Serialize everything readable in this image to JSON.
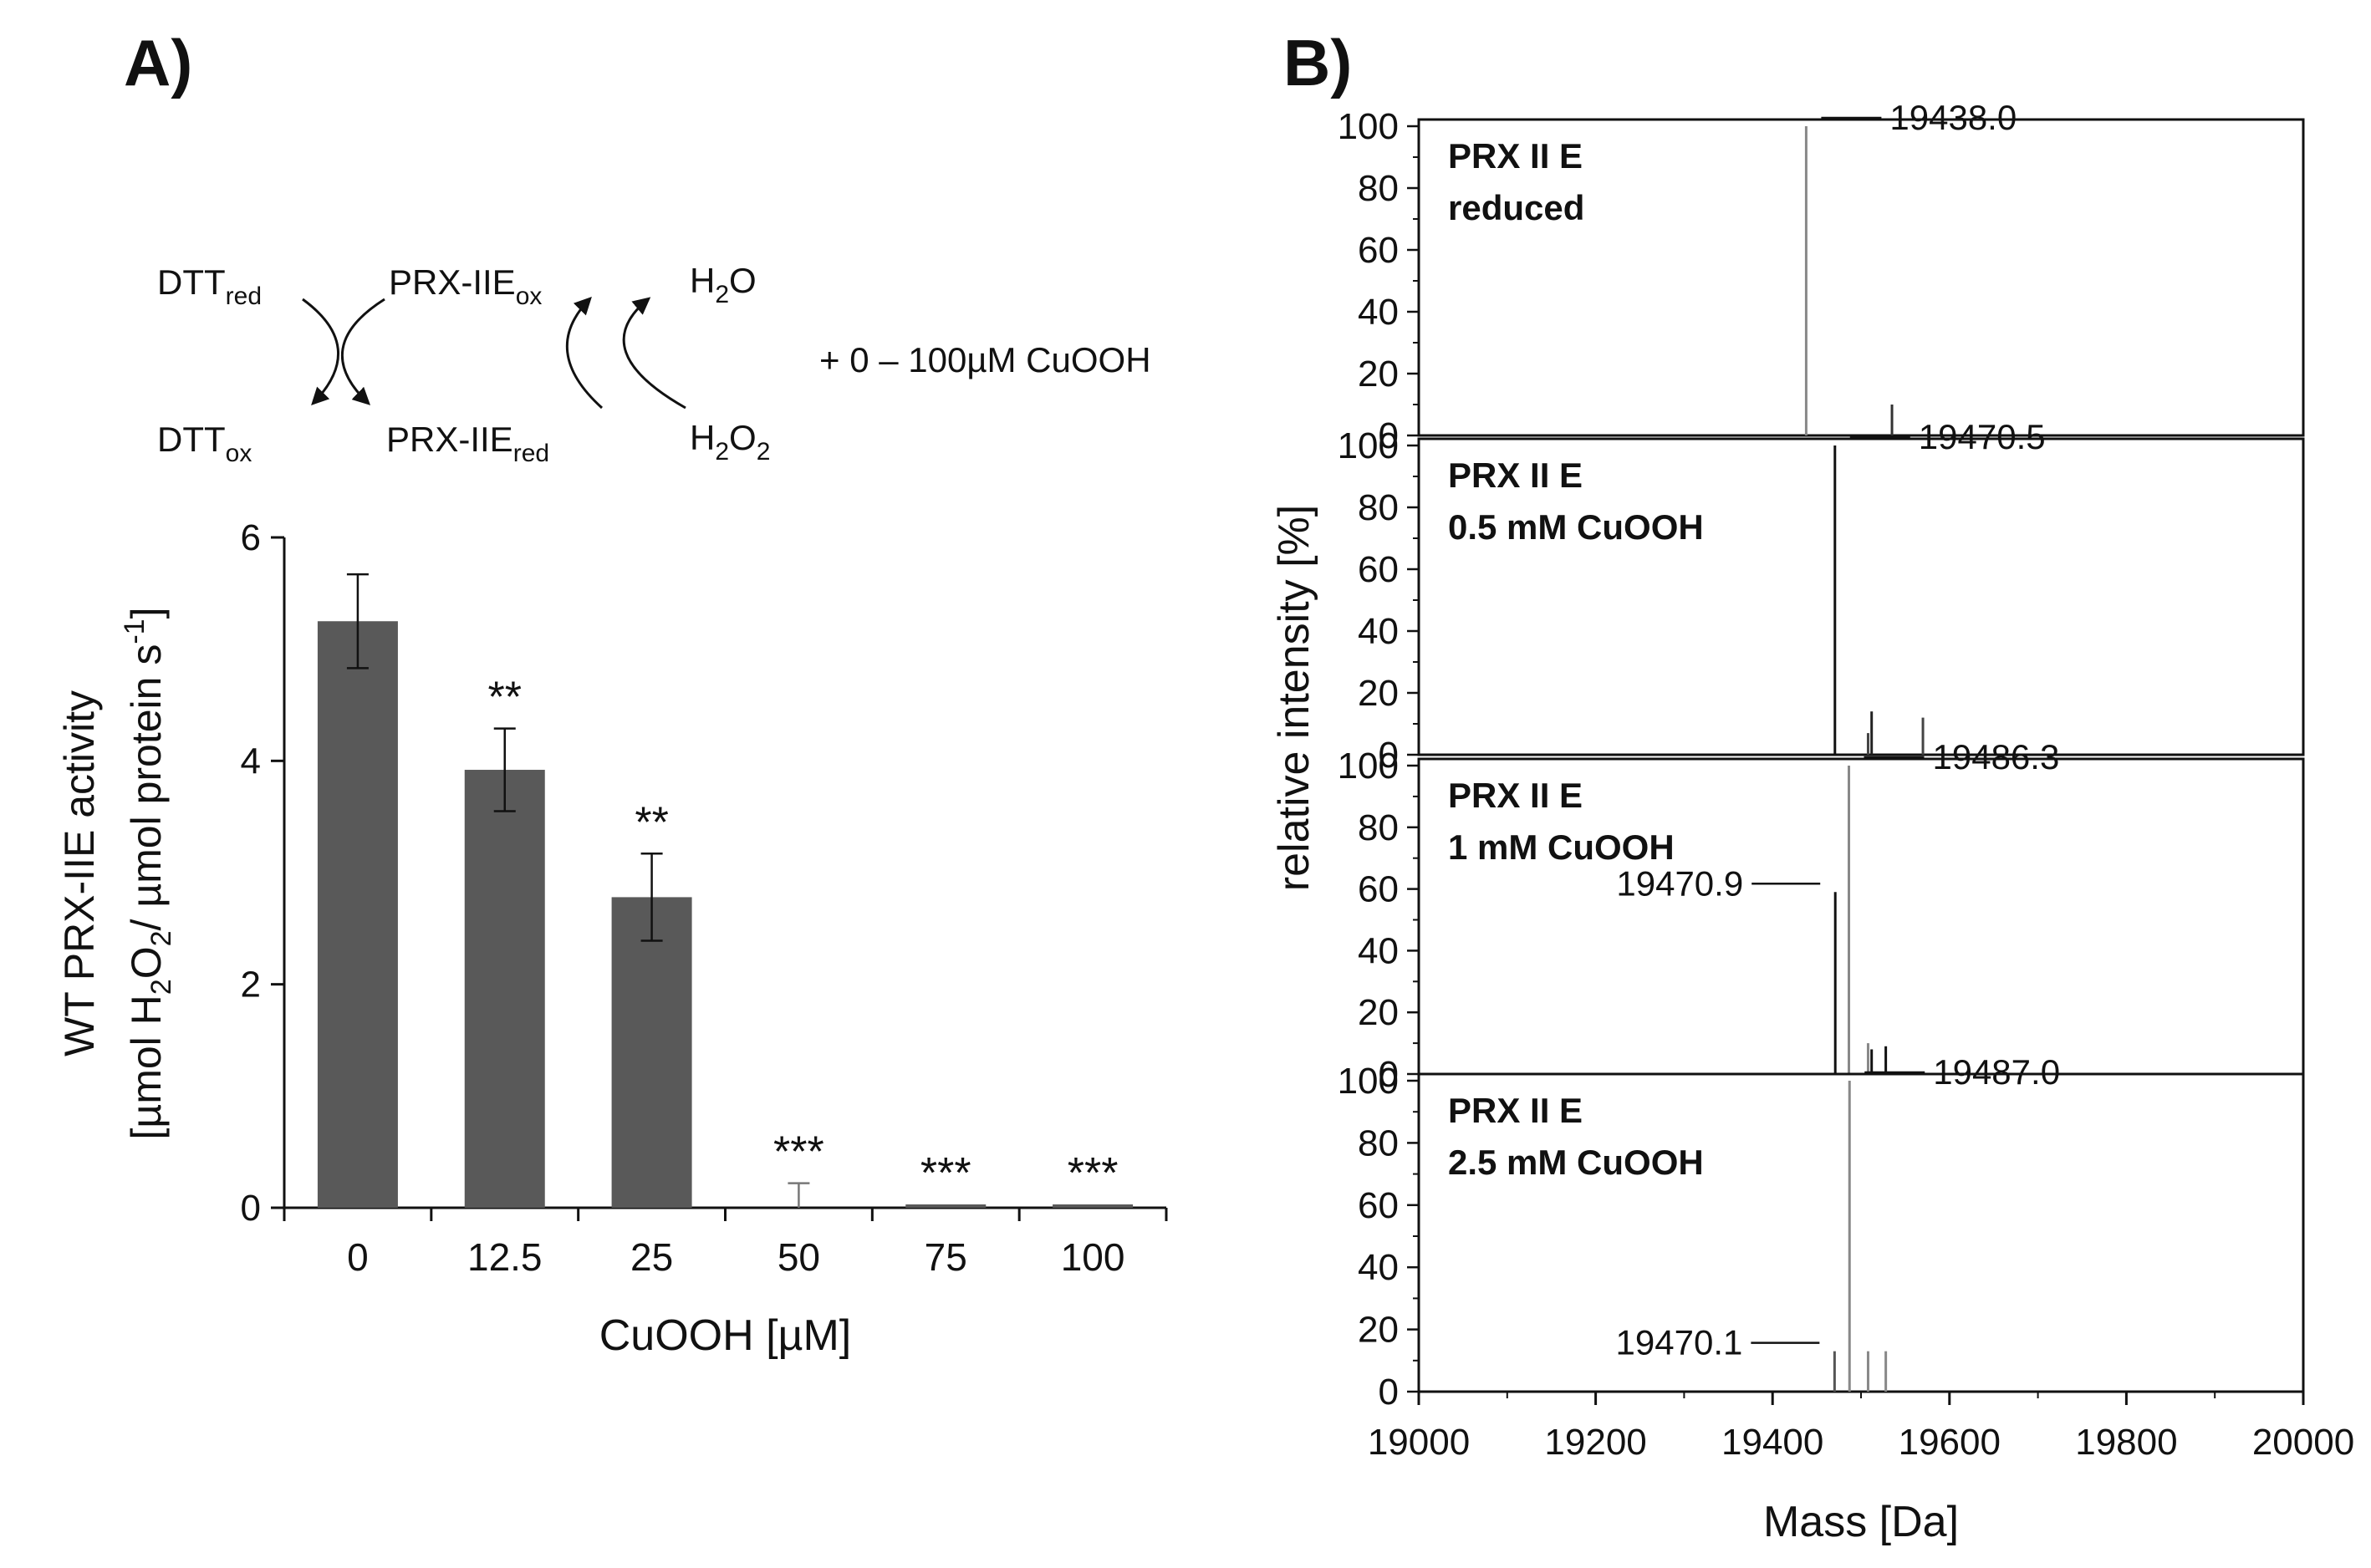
{
  "panel_a": {
    "label": "A)",
    "scheme": {
      "dtt_red": {
        "base": "DTT",
        "sub": "red"
      },
      "dtt_ox": {
        "base": "DTT",
        "sub": "ox"
      },
      "prx_ox": {
        "base": "PRX-IIE",
        "sub": "ox"
      },
      "prx_red": {
        "base": "PRX-IIE",
        "sub": "red"
      },
      "h2o": {
        "pre": "H",
        "sub": "2",
        "post": "O"
      },
      "h2o2": {
        "pre": "H",
        "sub": "2",
        "post": "O",
        "sub2": "2"
      },
      "addition": "+ 0 – 100µM CuOOH"
    }
  },
  "panel_b": {
    "label": "B)"
  },
  "chart_data": [
    {
      "type": "bar",
      "categories": [
        "0",
        "12.5",
        "25",
        "50",
        "75",
        "100"
      ],
      "values": [
        5.25,
        3.92,
        2.78,
        0.0,
        0.03,
        0.03
      ],
      "errors": [
        0.42,
        0.37,
        0.39,
        0.22,
        0.0,
        0.0
      ],
      "significance": [
        "",
        "**",
        "**",
        "***",
        "***",
        "***"
      ],
      "xlabel": "CuOOH [µM]",
      "ylabel_line1": "WT PRX-IIE activity",
      "ylabel_line2": {
        "a": "[µmol H",
        "s1": "2",
        "b": "O",
        "s2": "2",
        "c": "/ µmol protein s",
        "sup": "-1",
        "d": "]"
      },
      "ylim": [
        0,
        6
      ],
      "yticks": [
        "0",
        "2",
        "4",
        "6"
      ],
      "bar_color": "#595959"
    },
    {
      "type": "bar",
      "stacked_panels": true,
      "xlabel": "Mass [Da]",
      "ylabel": "relative intensity  [%]",
      "xlim": [
        19000,
        20000
      ],
      "xticks": [
        "19000",
        "19200",
        "19400",
        "19600",
        "19800",
        "20000"
      ],
      "ylim": [
        0,
        100
      ],
      "yticks": [
        "0",
        "20",
        "40",
        "60",
        "80",
        "100"
      ],
      "panels": [
        {
          "title_line1": "PRX II E",
          "title_line2": "reduced",
          "peaks": [
            {
              "x": 19438.0,
              "y": 100,
              "color": "#888888"
            },
            {
              "x": 19535,
              "y": 10,
              "color": "#333333"
            }
          ],
          "annotations": [
            {
              "text": "19438.0",
              "x": 19438.0,
              "y": 100,
              "side": "right"
            }
          ]
        },
        {
          "title_line1": "PRX II E",
          "title_line2": "0.5 mM CuOOH",
          "peaks": [
            {
              "x": 19470.5,
              "y": 100,
              "color": "#111111"
            },
            {
              "x": 19508,
              "y": 7,
              "color": "#444444"
            },
            {
              "x": 19512,
              "y": 14,
              "color": "#222222"
            },
            {
              "x": 19570,
              "y": 12,
              "color": "#444444"
            }
          ],
          "annotations": [
            {
              "text": "19470.5",
              "x": 19470.5,
              "y": 100,
              "side": "right"
            }
          ]
        },
        {
          "title_line1": "PRX II E",
          "title_line2": "1 mM CuOOH",
          "peaks": [
            {
              "x": 19470.9,
              "y": 59,
              "color": "#111111"
            },
            {
              "x": 19486.3,
              "y": 100,
              "color": "#888888"
            },
            {
              "x": 19508,
              "y": 10,
              "color": "#888888"
            },
            {
              "x": 19512,
              "y": 8,
              "color": "#111111"
            },
            {
              "x": 19528,
              "y": 9,
              "color": "#111111"
            }
          ],
          "annotations": [
            {
              "text": "19486.3",
              "x": 19486.3,
              "y": 100,
              "side": "right"
            },
            {
              "text": "19470.9",
              "x": 19470.9,
              "y": 59,
              "side": "left"
            }
          ]
        },
        {
          "title_line1": "PRX II E",
          "title_line2": "2.5 mM CuOOH",
          "peaks": [
            {
              "x": 19470.1,
              "y": 13,
              "color": "#555555"
            },
            {
              "x": 19487.0,
              "y": 100,
              "color": "#888888"
            },
            {
              "x": 19508,
              "y": 13,
              "color": "#888888"
            },
            {
              "x": 19528,
              "y": 13,
              "color": "#888888"
            }
          ],
          "annotations": [
            {
              "text": "19487.0",
              "x": 19487.0,
              "y": 100,
              "side": "right"
            },
            {
              "text": "19470.1",
              "x": 19470.1,
              "y": 13,
              "side": "left"
            }
          ]
        }
      ]
    }
  ]
}
